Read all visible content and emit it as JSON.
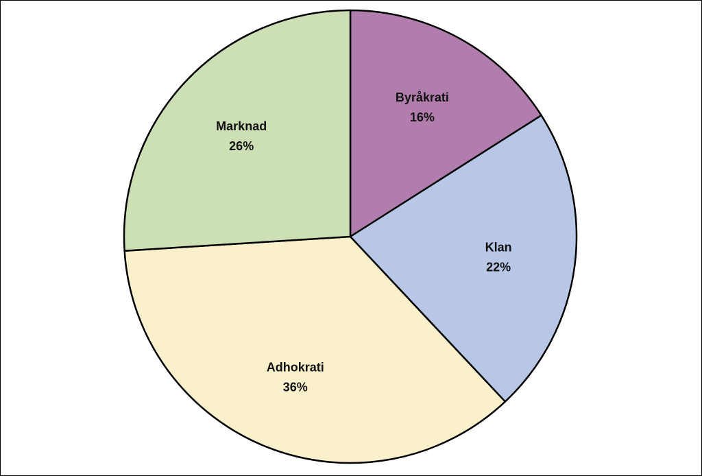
{
  "chart_data": {
    "type": "pie",
    "title": "",
    "start_angle_deg": 0,
    "direction": "clockwise",
    "legend": "none",
    "slices": [
      {
        "name": "Byråkrati",
        "value": 16,
        "label_value": "16%",
        "color": "#B07DAC"
      },
      {
        "name": "Klan",
        "value": 22,
        "label_value": "22%",
        "color": "#B8C7E6"
      },
      {
        "name": "Adhokrati",
        "value": 36,
        "label_value": "36%",
        "color": "#FAF0CB"
      },
      {
        "name": "Marknad",
        "value": 26,
        "label_value": "26%",
        "color": "#CDDFB4"
      }
    ],
    "outline_color": "#000000"
  }
}
